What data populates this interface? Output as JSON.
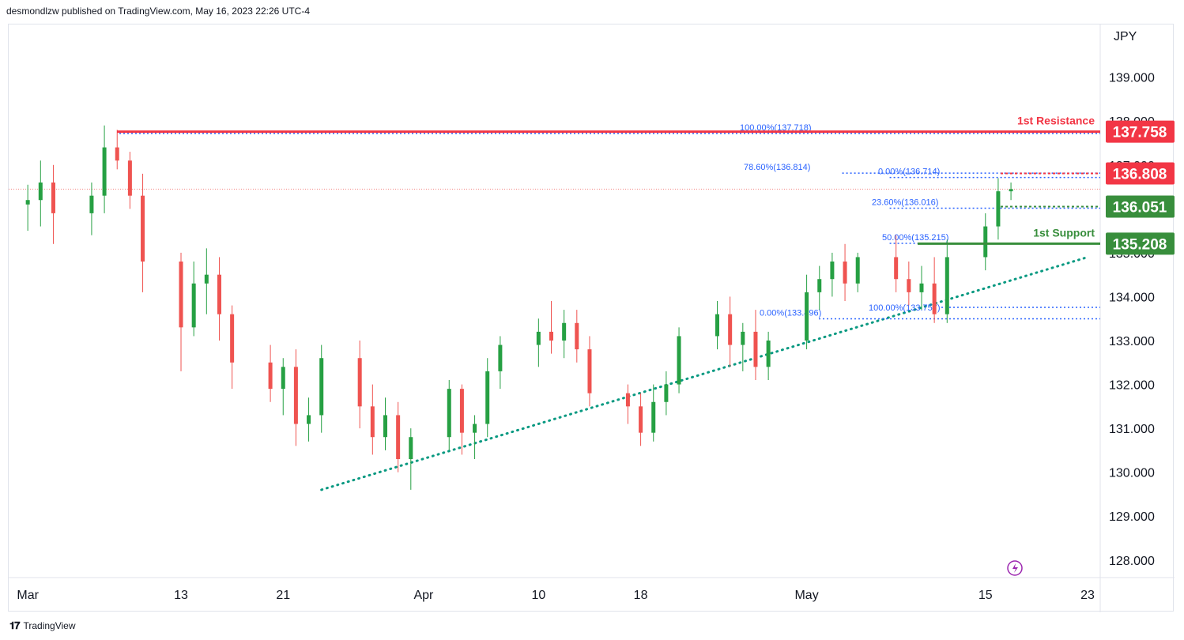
{
  "header": {
    "text": "desmondlzw published on TradingView.com, May 16, 2023 22:26 UTC-4"
  },
  "footer": {
    "brand": "TradingView"
  },
  "colors": {
    "up": "#26a043",
    "down": "#ef5350",
    "resistance": "#f23645",
    "support": "#388e3c",
    "fib": "#2962ff",
    "trend": "#089981",
    "axis_text": "#131722",
    "grid": "#e0e3eb"
  },
  "chart_data": {
    "type": "candlestick",
    "currency_label": "JPY",
    "y_ticks": [
      "139.000",
      "138.000",
      "137.000",
      "136.000",
      "135.000",
      "134.000",
      "133.000",
      "132.000",
      "131.000",
      "130.000",
      "129.000",
      "128.000"
    ],
    "y_range": [
      127.6,
      140.2
    ],
    "x_labels": [
      "Mar",
      "13",
      "21",
      "Apr",
      "10",
      "18",
      "May",
      "15",
      "23"
    ],
    "x_range": [
      "2023-02-28",
      "2023-05-23"
    ],
    "last_price": 136.45,
    "candles": [
      {
        "d": "2023-03-01",
        "o": 136.1,
        "h": 136.55,
        "l": 135.5,
        "c": 136.2
      },
      {
        "d": "2023-03-02",
        "o": 136.2,
        "h": 137.1,
        "l": 135.6,
        "c": 136.6
      },
      {
        "d": "2023-03-03",
        "o": 136.6,
        "h": 137.0,
        "l": 135.2,
        "c": 135.9
      },
      {
        "d": "2023-03-06",
        "o": 135.9,
        "h": 136.6,
        "l": 135.4,
        "c": 136.3
      },
      {
        "d": "2023-03-07",
        "o": 136.3,
        "h": 137.9,
        "l": 135.9,
        "c": 137.4
      },
      {
        "d": "2023-03-08",
        "o": 137.4,
        "h": 137.8,
        "l": 136.9,
        "c": 137.1
      },
      {
        "d": "2023-03-09",
        "o": 137.1,
        "h": 137.3,
        "l": 136.0,
        "c": 136.3
      },
      {
        "d": "2023-03-10",
        "o": 136.3,
        "h": 136.8,
        "l": 134.1,
        "c": 134.8
      },
      {
        "d": "2023-03-13",
        "o": 134.8,
        "h": 135.0,
        "l": 132.3,
        "c": 133.3
      },
      {
        "d": "2023-03-14",
        "o": 133.3,
        "h": 134.8,
        "l": 133.1,
        "c": 134.3
      },
      {
        "d": "2023-03-15",
        "o": 134.3,
        "h": 135.1,
        "l": 133.6,
        "c": 134.5
      },
      {
        "d": "2023-03-16",
        "o": 134.5,
        "h": 134.9,
        "l": 133.0,
        "c": 133.6
      },
      {
        "d": "2023-03-17",
        "o": 133.6,
        "h": 133.8,
        "l": 131.9,
        "c": 132.5
      },
      {
        "d": "2023-03-20",
        "o": 132.5,
        "h": 132.9,
        "l": 131.6,
        "c": 131.9
      },
      {
        "d": "2023-03-21",
        "o": 131.9,
        "h": 132.6,
        "l": 131.3,
        "c": 132.4
      },
      {
        "d": "2023-03-22",
        "o": 132.4,
        "h": 132.8,
        "l": 130.6,
        "c": 131.1
      },
      {
        "d": "2023-03-23",
        "o": 131.1,
        "h": 131.7,
        "l": 130.7,
        "c": 131.3
      },
      {
        "d": "2023-03-24",
        "o": 131.3,
        "h": 132.9,
        "l": 130.9,
        "c": 132.6
      },
      {
        "d": "2023-03-27",
        "o": 132.6,
        "h": 133.0,
        "l": 131.0,
        "c": 131.5
      },
      {
        "d": "2023-03-28",
        "o": 131.5,
        "h": 132.0,
        "l": 130.4,
        "c": 130.8
      },
      {
        "d": "2023-03-29",
        "o": 130.8,
        "h": 131.7,
        "l": 130.5,
        "c": 131.3
      },
      {
        "d": "2023-03-30",
        "o": 131.3,
        "h": 131.6,
        "l": 130.0,
        "c": 130.3
      },
      {
        "d": "2023-03-31",
        "o": 130.3,
        "h": 131.0,
        "l": 129.6,
        "c": 130.8
      },
      {
        "d": "2023-04-03",
        "o": 130.8,
        "h": 132.1,
        "l": 130.5,
        "c": 131.9
      },
      {
        "d": "2023-04-04",
        "o": 131.9,
        "h": 132.0,
        "l": 130.4,
        "c": 130.9
      },
      {
        "d": "2023-04-05",
        "o": 130.9,
        "h": 131.3,
        "l": 130.3,
        "c": 131.1
      },
      {
        "d": "2023-04-06",
        "o": 131.1,
        "h": 132.6,
        "l": 130.8,
        "c": 132.3
      },
      {
        "d": "2023-04-07",
        "o": 132.3,
        "h": 133.1,
        "l": 131.9,
        "c": 132.9
      },
      {
        "d": "2023-04-10",
        "o": 132.9,
        "h": 133.5,
        "l": 132.4,
        "c": 133.2
      },
      {
        "d": "2023-04-11",
        "o": 133.2,
        "h": 133.9,
        "l": 132.7,
        "c": 133.0
      },
      {
        "d": "2023-04-12",
        "o": 133.0,
        "h": 133.7,
        "l": 132.6,
        "c": 133.4
      },
      {
        "d": "2023-04-13",
        "o": 133.4,
        "h": 133.7,
        "l": 132.5,
        "c": 132.8
      },
      {
        "d": "2023-04-14",
        "o": 132.8,
        "h": 133.1,
        "l": 131.5,
        "c": 131.8
      },
      {
        "d": "2023-04-17",
        "o": 131.8,
        "h": 132.0,
        "l": 131.1,
        "c": 131.5
      },
      {
        "d": "2023-04-18",
        "o": 131.5,
        "h": 131.8,
        "l": 130.6,
        "c": 130.9
      },
      {
        "d": "2023-04-19",
        "o": 130.9,
        "h": 132.0,
        "l": 130.7,
        "c": 131.6
      },
      {
        "d": "2023-04-20",
        "o": 131.6,
        "h": 132.3,
        "l": 131.3,
        "c": 132.0
      },
      {
        "d": "2023-04-21",
        "o": 132.0,
        "h": 133.3,
        "l": 131.8,
        "c": 133.1
      },
      {
        "d": "2023-04-24",
        "o": 133.1,
        "h": 133.9,
        "l": 132.8,
        "c": 133.6
      },
      {
        "d": "2023-04-25",
        "o": 133.6,
        "h": 134.0,
        "l": 132.4,
        "c": 132.9
      },
      {
        "d": "2023-04-26",
        "o": 132.9,
        "h": 133.4,
        "l": 132.3,
        "c": 133.2
      },
      {
        "d": "2023-04-27",
        "o": 133.2,
        "h": 133.7,
        "l": 132.1,
        "c": 132.4
      },
      {
        "d": "2023-04-28",
        "o": 132.4,
        "h": 133.2,
        "l": 132.1,
        "c": 133.0
      },
      {
        "d": "2023-05-01",
        "o": 133.0,
        "h": 134.5,
        "l": 132.8,
        "c": 134.1
      },
      {
        "d": "2023-05-02",
        "o": 134.1,
        "h": 134.7,
        "l": 133.7,
        "c": 134.4
      },
      {
        "d": "2023-05-03",
        "o": 134.4,
        "h": 135.0,
        "l": 134.0,
        "c": 134.8
      },
      {
        "d": "2023-05-04",
        "o": 134.8,
        "h": 135.2,
        "l": 133.9,
        "c": 134.3
      },
      {
        "d": "2023-05-05",
        "o": 134.3,
        "h": 135.0,
        "l": 134.1,
        "c": 134.9
      },
      {
        "d": "2023-05-08",
        "o": 134.9,
        "h": 135.4,
        "l": 134.1,
        "c": 134.4
      },
      {
        "d": "2023-05-09",
        "o": 134.4,
        "h": 134.8,
        "l": 133.8,
        "c": 134.1
      },
      {
        "d": "2023-05-10",
        "o": 134.1,
        "h": 134.7,
        "l": 133.7,
        "c": 134.3
      },
      {
        "d": "2023-05-11",
        "o": 134.3,
        "h": 134.9,
        "l": 133.4,
        "c": 133.6
      },
      {
        "d": "2023-05-12",
        "o": 133.6,
        "h": 135.3,
        "l": 133.4,
        "c": 134.9
      },
      {
        "d": "2023-05-15",
        "o": 134.9,
        "h": 135.9,
        "l": 134.6,
        "c": 135.6
      },
      {
        "d": "2023-05-16",
        "o": 135.6,
        "h": 136.7,
        "l": 135.3,
        "c": 136.4
      },
      {
        "d": "2023-05-17",
        "o": 136.4,
        "h": 136.6,
        "l": 136.2,
        "c": 136.45
      }
    ],
    "levels": [
      {
        "label": "1st Resistance",
        "value": "137.758",
        "type": "resistance"
      },
      {
        "label": "",
        "value": "136.808",
        "type": "resistance"
      },
      {
        "label": "",
        "value": "136.051",
        "type": "support"
      },
      {
        "label": "1st Support",
        "value": "135.208",
        "type": "support"
      }
    ],
    "fib_upper": [
      {
        "label": "100.00%(137.718)",
        "value": 137.718
      },
      {
        "label": "78.60%(136.814)",
        "value": 136.814
      },
      {
        "label": "0.00%(136.714)",
        "value": 136.714
      },
      {
        "label": "23.60%(136.016)",
        "value": 136.016
      },
      {
        "label": "50.00%(135.215)",
        "value": 135.215
      }
    ],
    "fib_lower": [
      {
        "label": "100.00%(133.757)",
        "value": 133.757
      },
      {
        "label": "0.00%(133.496)",
        "value": 133.496
      }
    ],
    "trendline": {
      "from": {
        "d": "2023-03-24",
        "v": 129.6
      },
      "to": {
        "d": "2023-05-23",
        "v": 134.9
      }
    },
    "grid": false,
    "logo_icon": "lightning-icon"
  }
}
